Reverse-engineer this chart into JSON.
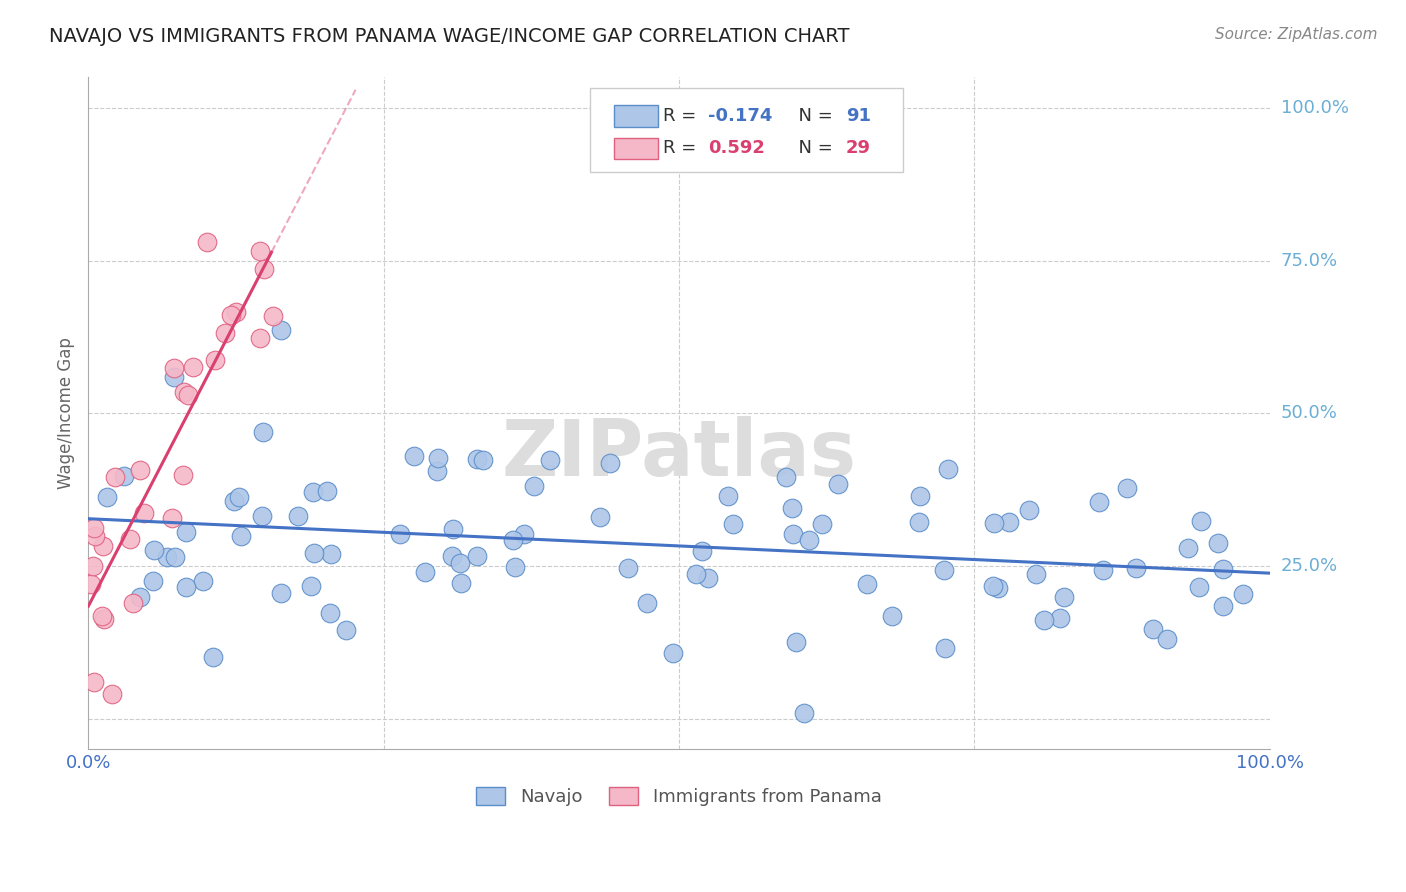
{
  "title": "NAVAJO VS IMMIGRANTS FROM PANAMA WAGE/INCOME GAP CORRELATION CHART",
  "source": "Source: ZipAtlas.com",
  "ylabel": "Wage/Income Gap",
  "watermark": "ZIPatlas",
  "navajo_R": -0.174,
  "navajo_N": 91,
  "panama_R": 0.592,
  "panama_N": 29,
  "navajo_color": "#aec6e8",
  "navajo_edge_color": "#5b8ec9",
  "panama_color": "#f5b8c8",
  "panama_edge_color": "#e06080",
  "navajo_line_color": "#4472c4",
  "panama_line_color": "#d94070",
  "label_color": "#4472c4",
  "panama_label_color": "#d94070",
  "background_color": "#ffffff",
  "grid_color": "#cccccc",
  "right_label_color": "#6baed6",
  "xlim": [
    0.0,
    1.0
  ],
  "ylim": [
    -0.05,
    1.05
  ],
  "navajo_seed": 42,
  "panama_seed": 7
}
